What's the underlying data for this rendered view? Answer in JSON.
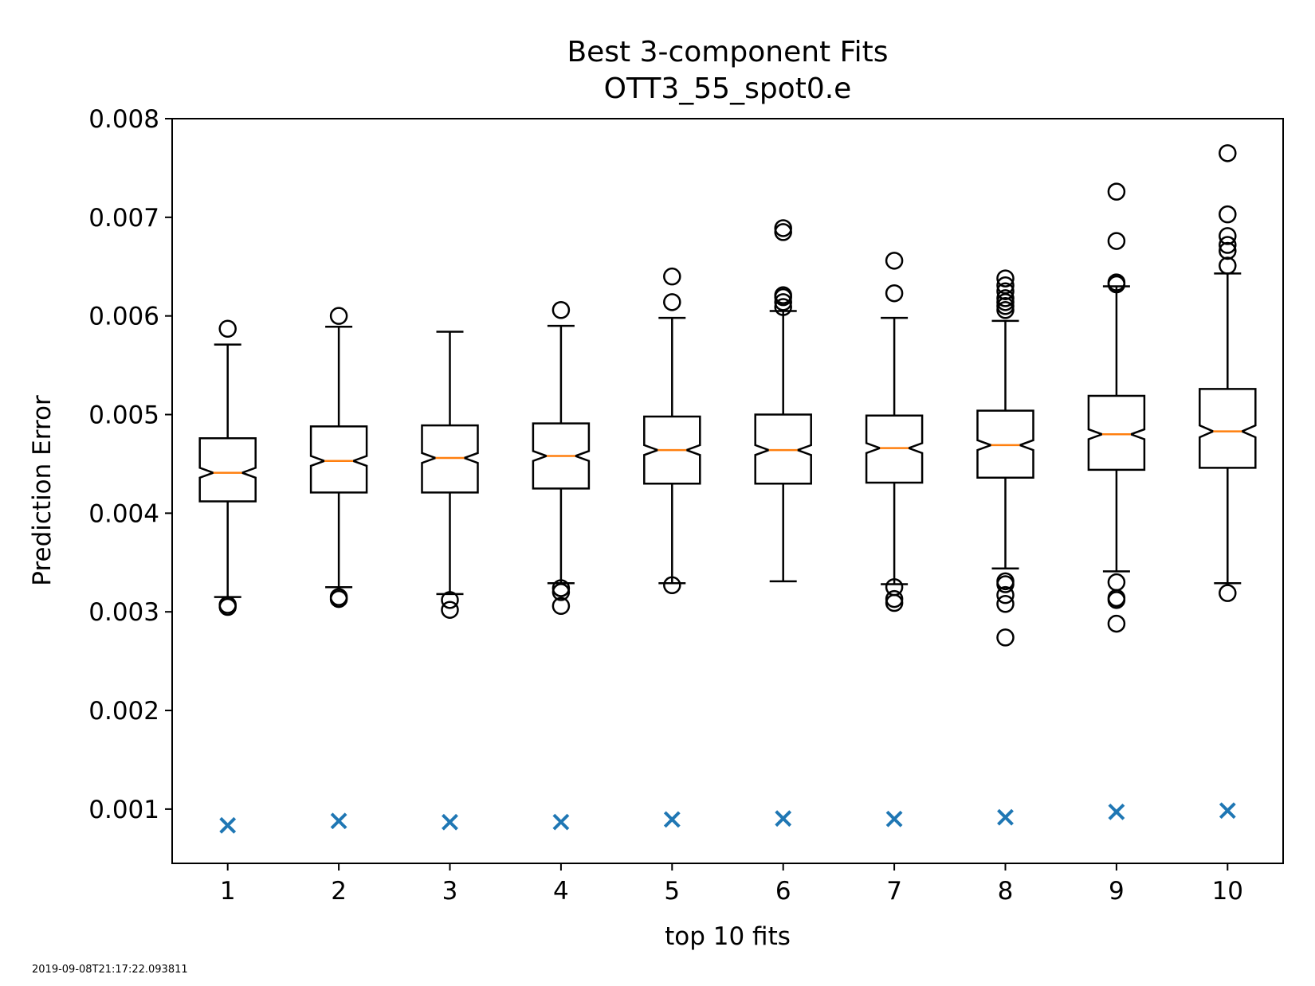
{
  "chart_data": {
    "type": "box",
    "title": "Best 3-component Fits",
    "subtitle": "OTT3_55_spot0.e",
    "xlabel": "top 10 fits",
    "ylabel": "Prediction Error",
    "ylim": [
      0.00045,
      0.008
    ],
    "xlim": [
      0.5,
      10.5
    ],
    "yticks": [
      "0.001",
      "0.002",
      "0.003",
      "0.004",
      "0.005",
      "0.006",
      "0.007",
      "0.008"
    ],
    "categories": [
      "1",
      "2",
      "3",
      "4",
      "5",
      "6",
      "7",
      "8",
      "9",
      "10"
    ],
    "boxes": [
      {
        "whisker_low": 0.00315,
        "q1": 0.00412,
        "median": 0.00441,
        "q3": 0.00476,
        "whisker_high": 0.00571,
        "notch_low": 0.00436,
        "notch_high": 0.00446,
        "outliers": [
          0.00305,
          0.00307,
          0.00587
        ]
      },
      {
        "whisker_low": 0.00325,
        "q1": 0.00421,
        "median": 0.00453,
        "q3": 0.00488,
        "whisker_high": 0.00589,
        "notch_low": 0.00448,
        "notch_high": 0.00458,
        "outliers": [
          0.00313,
          0.00315,
          0.006
        ]
      },
      {
        "whisker_low": 0.00318,
        "q1": 0.00421,
        "median": 0.00456,
        "q3": 0.00489,
        "whisker_high": 0.00584,
        "notch_low": 0.00451,
        "notch_high": 0.00461,
        "outliers": [
          0.00302,
          0.00312
        ]
      },
      {
        "whisker_low": 0.00329,
        "q1": 0.00425,
        "median": 0.00458,
        "q3": 0.00491,
        "whisker_high": 0.0059,
        "notch_low": 0.00453,
        "notch_high": 0.00463,
        "outliers": [
          0.00306,
          0.0032,
          0.00324,
          0.00606
        ]
      },
      {
        "whisker_low": 0.00329,
        "q1": 0.0043,
        "median": 0.00464,
        "q3": 0.00498,
        "whisker_high": 0.00598,
        "notch_low": 0.00459,
        "notch_high": 0.00469,
        "outliers": [
          0.00327,
          0.00614,
          0.0064
        ]
      },
      {
        "whisker_low": 0.00331,
        "q1": 0.0043,
        "median": 0.00464,
        "q3": 0.005,
        "whisker_high": 0.00605,
        "notch_low": 0.00459,
        "notch_high": 0.00469,
        "outliers": [
          0.00609,
          0.00614,
          0.00619,
          0.00621,
          0.00685,
          0.00689
        ]
      },
      {
        "whisker_low": 0.00328,
        "q1": 0.00431,
        "median": 0.00466,
        "q3": 0.00499,
        "whisker_high": 0.00598,
        "notch_low": 0.00461,
        "notch_high": 0.00471,
        "outliers": [
          0.00309,
          0.00313,
          0.00325,
          0.00623,
          0.00656
        ]
      },
      {
        "whisker_low": 0.00344,
        "q1": 0.00436,
        "median": 0.00469,
        "q3": 0.00504,
        "whisker_high": 0.00595,
        "notch_low": 0.00464,
        "notch_high": 0.00474,
        "outliers": [
          0.00274,
          0.00308,
          0.00317,
          0.00328,
          0.00331,
          0.00606,
          0.0061,
          0.00614,
          0.00618,
          0.00625,
          0.00631,
          0.00638
        ]
      },
      {
        "whisker_low": 0.00341,
        "q1": 0.00444,
        "median": 0.0048,
        "q3": 0.00519,
        "whisker_high": 0.0063,
        "notch_low": 0.00475,
        "notch_high": 0.00485,
        "outliers": [
          0.00288,
          0.00312,
          0.00314,
          0.0033,
          0.00632,
          0.00634,
          0.00676,
          0.00726
        ]
      },
      {
        "whisker_low": 0.00329,
        "q1": 0.00446,
        "median": 0.00483,
        "q3": 0.00526,
        "whisker_high": 0.00643,
        "notch_low": 0.00477,
        "notch_high": 0.00489,
        "outliers": [
          0.00319,
          0.00651,
          0.00666,
          0.00672,
          0.00681,
          0.00703,
          0.00765
        ]
      }
    ],
    "markers": {
      "shape": "x",
      "values": [
        0.000835,
        0.00088,
        0.000868,
        0.000869,
        0.000895,
        0.000905,
        0.0009,
        0.000917,
        0.000972,
        0.000985
      ]
    },
    "grid": false,
    "colors": {
      "box": "#000000",
      "median": "#ff7f0e",
      "marker": "#1f77b4"
    }
  },
  "timestamp": "2019-09-08T21:17:22.093811"
}
